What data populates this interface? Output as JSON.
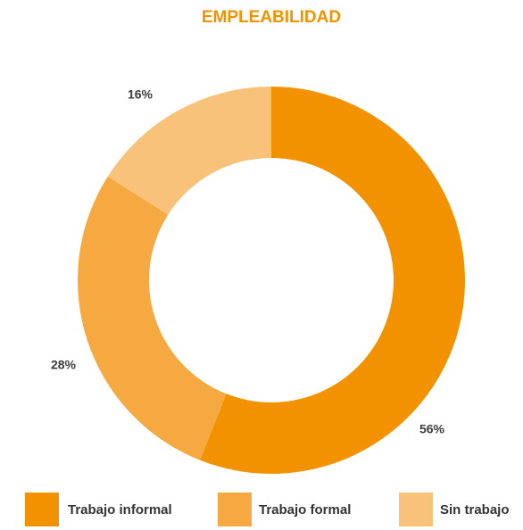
{
  "chart_data": {
    "type": "donut",
    "title": "EMPLEABILIDAD",
    "categories": [
      "Trabajo informal",
      "Trabajo formal",
      "Sin trabajo"
    ],
    "values": [
      56,
      28,
      16
    ],
    "value_labels": [
      "56%",
      "28%",
      "16%"
    ],
    "colors": [
      "#f39200",
      "#f5a940",
      "#f9c27a"
    ]
  }
}
